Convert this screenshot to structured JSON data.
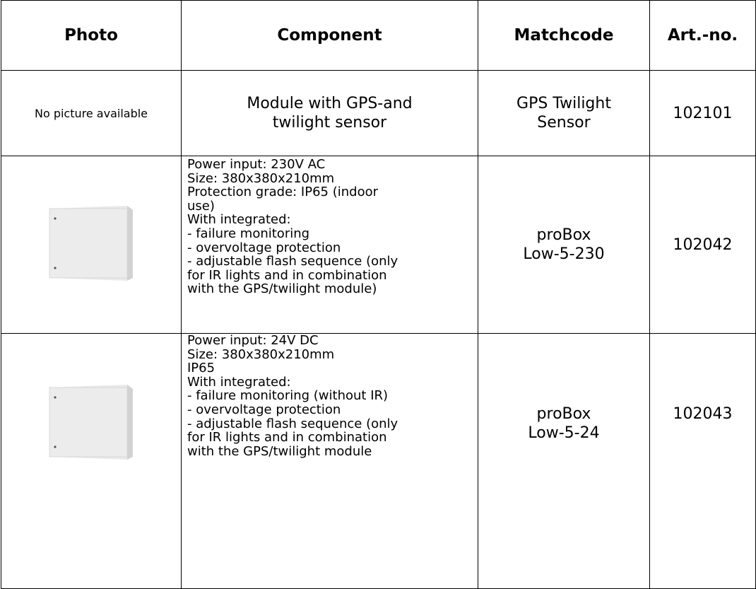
{
  "table": {
    "headers": [
      "Photo",
      "Component",
      "Matchcode",
      "Art.-no."
    ],
    "rows": [
      {
        "photo": "No picture available",
        "component": [
          "Module with GPS-and",
          "twilight sensor"
        ],
        "matchcode": [
          "GPS Twilight",
          "Sensor"
        ],
        "art_no": "102101"
      },
      {
        "component": [
          "Power input: 230V AC",
          "Size: 380x380x210mm",
          "Protection grade: IP65 (indoor",
          "use)",
          "With integrated:",
          "- failure monitoring",
          "- overvoltage protection",
          "- adjustable flash sequence (only",
          "for IR lights and in combination",
          "with the GPS/twilight module)"
        ],
        "matchcode": [
          "proBox",
          "Low-5-230"
        ],
        "art_no": "102042"
      },
      {
        "component": [
          "Power input: 24V DC",
          "Size: 380x380x210mm",
          "IP65",
          "With integrated:",
          "- failure monitoring (without IR)",
          "- overvoltage protection",
          "- adjustable flash sequence (only",
          "for IR lights and in combination",
          "with the GPS/twilight module"
        ],
        "matchcode": [
          "proBox",
          "Low-5-24"
        ],
        "art_no": "102043"
      }
    ]
  }
}
